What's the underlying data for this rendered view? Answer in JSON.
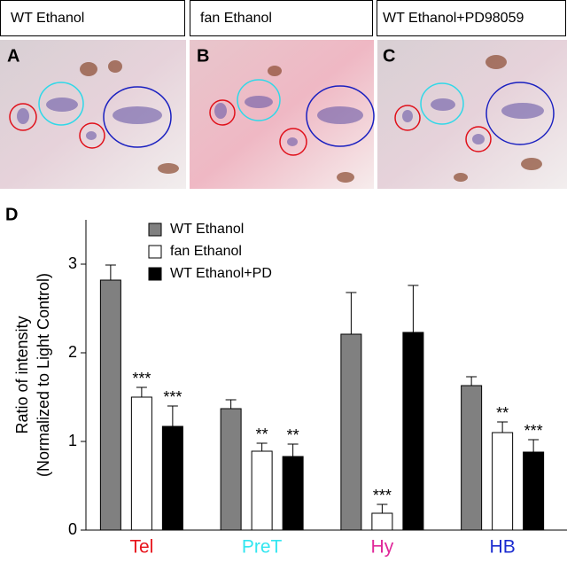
{
  "panels": [
    {
      "letter": "A",
      "label": "WT Ethanol"
    },
    {
      "letter": "B",
      "label": "fan Ethanol"
    },
    {
      "letter": "C",
      "label": "WT Ethanol+PD98059"
    }
  ],
  "chart_data": {
    "type": "bar",
    "panel_letter": "D",
    "y_label": [
      "Ratio of intensity",
      "(Normalized to Light Control)"
    ],
    "categories": [
      "Tel",
      "PreT",
      "Hy",
      "HB"
    ],
    "category_colors": [
      "#e8141c",
      "#33e6f0",
      "#e0289a",
      "#1a2bd0"
    ],
    "series": [
      {
        "name": "WT Ethanol",
        "color": "#808080",
        "values": [
          2.82,
          1.37,
          2.21,
          1.63
        ],
        "errors": [
          0.17,
          0.1,
          0.47,
          0.1
        ],
        "significance": [
          null,
          null,
          null,
          null
        ]
      },
      {
        "name": "fan Ethanol",
        "color": "#ffffff",
        "values": [
          1.5,
          0.89,
          0.19,
          1.1
        ],
        "errors": [
          0.11,
          0.09,
          0.1,
          0.12
        ],
        "significance": [
          "***",
          "**",
          "***",
          "**"
        ]
      },
      {
        "name": "WT Ethanol+PD",
        "color": "#000000",
        "values": [
          1.17,
          0.83,
          2.23,
          0.88
        ],
        "errors": [
          0.23,
          0.14,
          0.53,
          0.14
        ],
        "significance": [
          "***",
          "**",
          null,
          "***"
        ]
      }
    ],
    "ylim": [
      0,
      3.5
    ],
    "yticks": [
      0,
      1,
      2,
      3
    ],
    "grid": false
  }
}
